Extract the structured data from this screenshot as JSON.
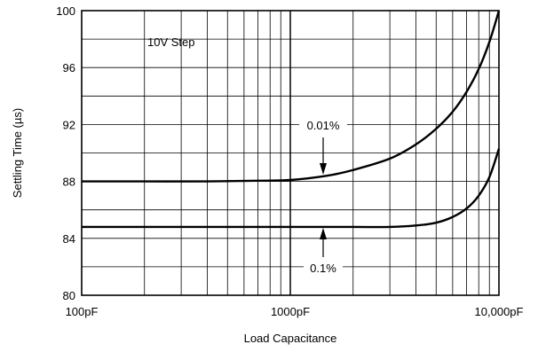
{
  "chart_data": {
    "type": "line",
    "xlabel": "Load Capacitance",
    "ylabel": "Settling Time (µs)",
    "xscale": "log",
    "xlim": [
      100,
      10000
    ],
    "ylim": [
      80,
      100
    ],
    "grid": true,
    "x_tick_labels": [
      "100pF",
      "1000pF",
      "10,000pF"
    ],
    "x_tick_values": [
      100,
      1000,
      10000
    ],
    "y_ticks": [
      80,
      84,
      88,
      92,
      96,
      100
    ],
    "annotations": {
      "step": "10V Step",
      "series_a": "0.01%",
      "series_b": "0.1%"
    },
    "series": [
      {
        "name": "0.01%",
        "x": [
          100,
          200,
          400,
          700,
          1000,
          1500,
          2000,
          3000,
          4000,
          5000,
          6000,
          7000,
          8000,
          9000,
          10000
        ],
        "y": [
          88,
          88,
          88,
          88.05,
          88.1,
          88.4,
          88.8,
          89.6,
          90.6,
          91.7,
          92.9,
          94.3,
          95.9,
          97.8,
          100
        ]
      },
      {
        "name": "0.1%",
        "x": [
          100,
          500,
          1000,
          2000,
          3000,
          4000,
          5000,
          6000,
          7000,
          8000,
          9000,
          10000
        ],
        "y": [
          84.8,
          84.8,
          84.8,
          84.8,
          84.8,
          84.9,
          85.1,
          85.5,
          86.1,
          87.0,
          88.3,
          90.3
        ]
      }
    ]
  }
}
